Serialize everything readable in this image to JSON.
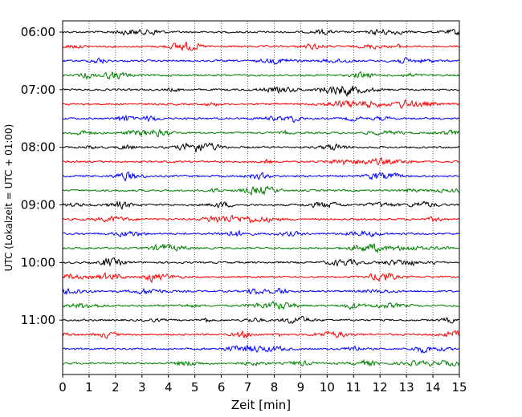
{
  "chart_data": {
    "type": "line",
    "description_kind": "seismogram-helicorder",
    "xlabel": "Zeit  [min]",
    "ylabel": "UTC (Lokalzeit = UTC + 01:00)",
    "xlim": [
      0,
      15
    ],
    "x_ticks": [
      0,
      1,
      2,
      3,
      4,
      5,
      6,
      7,
      8,
      9,
      10,
      11,
      12,
      13,
      14,
      15
    ],
    "x_tick_labels": [
      "0",
      "1",
      "2",
      "3",
      "4",
      "5",
      "6",
      "7",
      "8",
      "9",
      "10",
      "11",
      "12",
      "13",
      "14",
      "15"
    ],
    "y_tick_labels": [
      "06:00",
      "07:00",
      "08:00",
      "09:00",
      "10:00",
      "11:00"
    ],
    "y_tick_rows": [
      0,
      4,
      8,
      12,
      16,
      20
    ],
    "row_count": 24,
    "row_start": "06:00",
    "row_interval_min": 15,
    "trace_colors": [
      "#000000",
      "#ff0000",
      "#0000ff",
      "#008000"
    ],
    "grid_x": true,
    "grid_style": "dotted"
  }
}
